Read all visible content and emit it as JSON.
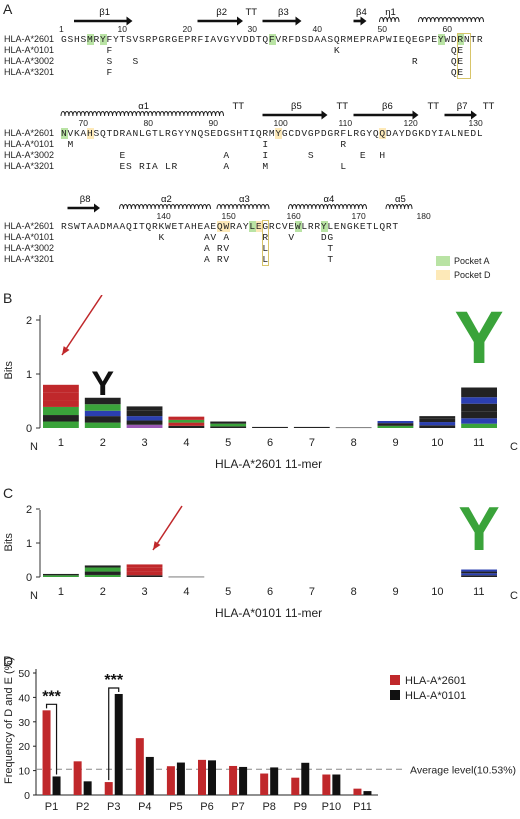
{
  "panel_labels": {
    "a": "A",
    "b": "B",
    "c": "C",
    "d": "D"
  },
  "alignment": {
    "block1": {
      "ss": [
        {
          "label": "β1",
          "type": "arrow",
          "start": 2,
          "end": 11
        },
        {
          "label": "β2",
          "type": "arrow",
          "start": 21,
          "end": 28
        },
        {
          "label": "TT",
          "type": "text",
          "start": 28,
          "end": 30
        },
        {
          "label": "β3",
          "type": "arrow",
          "start": 31,
          "end": 37
        },
        {
          "label": "β4",
          "type": "arrow",
          "start": 45,
          "end": 47
        },
        {
          "label": "η1",
          "type": "helix",
          "start": 49,
          "end": 52
        },
        {
          "label": "",
          "type": "helix",
          "start": 55,
          "end": 65
        }
      ],
      "nums": [
        {
          "n": "1",
          "pos": 0
        },
        {
          "n": "10",
          "pos": 9
        },
        {
          "n": "20",
          "pos": 19
        },
        {
          "n": "30",
          "pos": 29
        },
        {
          "n": "40",
          "pos": 39
        },
        {
          "n": "50",
          "pos": 49
        },
        {
          "n": "60",
          "pos": 59
        }
      ],
      "rows": [
        {
          "name": "HLA-A*2601",
          "seq": "GSHSMRYFYTSVSRPGRGEPRFIAVGYVDDTQFVRFDSDAASQRMEPRAPWIEQEGPEYWDRNTR"
        },
        {
          "name": "HLA-A*0101",
          "seq": "       F                                  K                 QE "
        },
        {
          "name": "HLA-A*3002",
          "seq": "       S   S                                          R     QE "
        },
        {
          "name": "HLA-A*3201",
          "seq": "       F                                                    QE "
        }
      ],
      "hlA": [
        4,
        6,
        32,
        58,
        61
      ],
      "hlD": [],
      "boxes": [
        [
          61,
          62
        ]
      ]
    },
    "block2": {
      "ss": [
        {
          "label": "α1",
          "type": "helix",
          "start": 0,
          "end": 25
        },
        {
          "label": "TT",
          "type": "text",
          "start": 26,
          "end": 28
        },
        {
          "label": "β5",
          "type": "arrow",
          "start": 31,
          "end": 41
        },
        {
          "label": "TT",
          "type": "text",
          "start": 42,
          "end": 44
        },
        {
          "label": "β6",
          "type": "arrow",
          "start": 45,
          "end": 55
        },
        {
          "label": "TT",
          "type": "text",
          "start": 56,
          "end": 58
        },
        {
          "label": "β7",
          "type": "arrow",
          "start": 59,
          "end": 64
        },
        {
          "label": "TT",
          "type": "text",
          "start": 65,
          "end": 66
        }
      ],
      "nums": [
        {
          "n": "70",
          "pos": 3
        },
        {
          "n": "80",
          "pos": 13
        },
        {
          "n": "90",
          "pos": 23
        },
        {
          "n": "100",
          "pos": 33
        },
        {
          "n": "110",
          "pos": 43
        },
        {
          "n": "120",
          "pos": 53
        },
        {
          "n": "130",
          "pos": 63
        }
      ],
      "rows": [
        {
          "name": "HLA-A*2601",
          "seq": "NVKAHSQTDRANLGTLRGYYNQSEDGSHTIQRMYGCDVGPDGRFLRGYQQDAYDGKDYIALNEDL"
        },
        {
          "name": "HLA-A*0101",
          "seq": " M                             I           R                   "
        },
        {
          "name": "HLA-A*3002",
          "seq": "         E               A     I      S       E  H             "
        },
        {
          "name": "HLA-A*3201",
          "seq": "         ES RIA LR       A     M           L                   "
        }
      ],
      "hlA": [
        0
      ],
      "hlD": [
        4,
        33,
        49
      ],
      "boxes": []
    },
    "block3": {
      "ss": [
        {
          "label": "β8",
          "type": "arrow",
          "start": 1,
          "end": 6
        },
        {
          "label": "α2",
          "type": "helix",
          "start": 9,
          "end": 23
        },
        {
          "label": "α3",
          "type": "helix",
          "start": 24,
          "end": 32
        },
        {
          "label": "α4",
          "type": "helix",
          "start": 35,
          "end": 47
        },
        {
          "label": "α5",
          "type": "helix",
          "start": 50,
          "end": 54
        }
      ],
      "nums": [
        {
          "n": "140",
          "pos": 15
        },
        {
          "n": "150",
          "pos": 25
        },
        {
          "n": "160",
          "pos": 35
        },
        {
          "n": "170",
          "pos": 45
        },
        {
          "n": "180",
          "pos": 55
        }
      ],
      "rows": [
        {
          "name": "HLA-A*2601",
          "seq": "RSWTAADMAAQITQRKWETAHEAEQWRAYLEGRCVEWLRRYLENGKETLQRT"
        },
        {
          "name": "HLA-A*0101",
          "seq": "               K      AV A     R   V    DG            "
        },
        {
          "name": "HLA-A*3002",
          "seq": "                      A RV     L         T            "
        },
        {
          "name": "HLA-A*3201",
          "seq": "                      A RV     L         T            "
        }
      ],
      "hlA": [
        29,
        36,
        40
      ],
      "hlD": [
        24,
        25,
        30
      ],
      "boxes": [
        [
          31,
          31
        ]
      ]
    },
    "pocket_a": "Pocket A",
    "pocket_d": "Pocket D"
  },
  "colors": {
    "pocketA": "#b9e3a4",
    "pocketD": "#fde9b8",
    "red": "#c0282b",
    "green": "#3aa33a",
    "black": "#111111",
    "gray": "#8a8a8a"
  },
  "logo_b": {
    "ylabel": "Bits",
    "xlabel": "HLA-A*2601 11-mer",
    "n": "N",
    "c": "C",
    "positions": [
      "1",
      "2",
      "3",
      "4",
      "5",
      "6",
      "7",
      "8",
      "9",
      "10",
      "11"
    ],
    "ticks": [
      "0",
      "1",
      "2"
    ]
  },
  "logo_c": {
    "ylabel": "Bits",
    "xlabel": "HLA-A*0101 11-mer",
    "n": "N",
    "c": "C",
    "positions": [
      "1",
      "2",
      "3",
      "4",
      "5",
      "6",
      "7",
      "8",
      "9",
      "10",
      "11"
    ],
    "ticks": [
      "0",
      "1",
      "2"
    ]
  },
  "chart_data": {
    "type": "bar",
    "ylabel": "Frequency of D and E (%)",
    "categories": [
      "P1",
      "P2",
      "P3",
      "P4",
      "P5",
      "P6",
      "P7",
      "P8",
      "P9",
      "P10",
      "P11"
    ],
    "series": [
      {
        "name": "HLA-A*2601",
        "color": "#c0282b",
        "values": [
          34.7,
          13.8,
          5.3,
          23.3,
          11.8,
          14.4,
          11.9,
          8.8,
          7.1,
          8.4,
          2.6
        ]
      },
      {
        "name": "HLA-A*0101",
        "color": "#111111",
        "values": [
          7.6,
          5.6,
          41.4,
          15.6,
          13.3,
          14.2,
          11.5,
          11.3,
          13.2,
          8.4,
          1.6
        ]
      }
    ],
    "yticks": [
      "0",
      "10",
      "20",
      "30",
      "40",
      "50"
    ],
    "ylim": [
      0,
      50
    ],
    "average_line": 10.53,
    "average_label": "Average level(10.53%)",
    "significance": [
      {
        "category": "P1",
        "label": "***"
      },
      {
        "category": "P3",
        "label": "***"
      }
    ],
    "legend": "top-right"
  }
}
